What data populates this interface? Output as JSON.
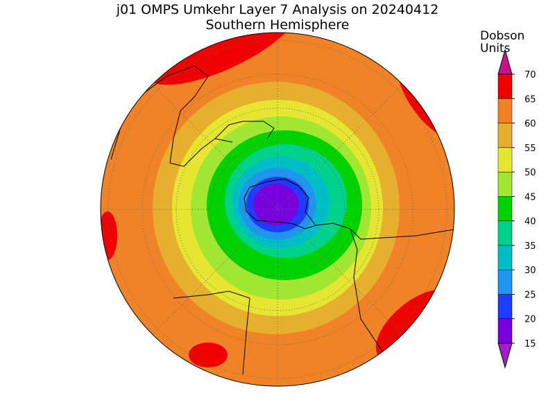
{
  "title": "j01 OMPS Umkehr Layer 7 Analysis on 20240412",
  "subtitle": "Southern Hemisphere",
  "colorbar": {
    "label": [
      "Dobson",
      "Units"
    ],
    "ticks": [
      15,
      20,
      25,
      30,
      35,
      40,
      45,
      50,
      55,
      60,
      65,
      70
    ],
    "colors": [
      "#a01ec8",
      "#7800dc",
      "#1e3cff",
      "#1e96f0",
      "#00bec8",
      "#00d28c",
      "#00d200",
      "#a0e632",
      "#e6e632",
      "#e6af2d",
      "#f08228",
      "#f00000",
      "#c8148c"
    ]
  }
}
